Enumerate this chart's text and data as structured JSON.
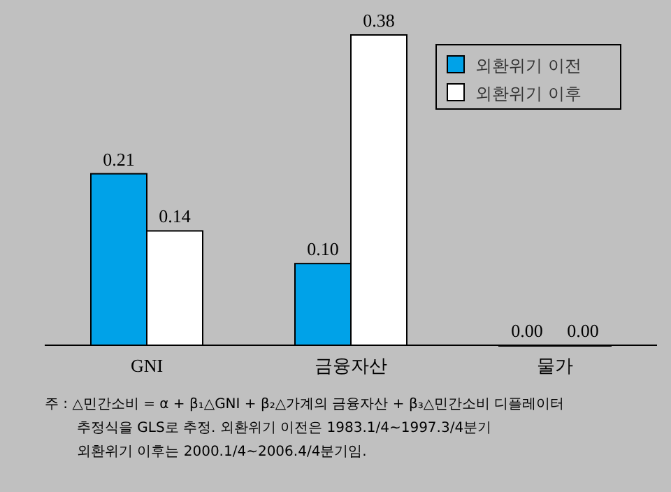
{
  "chart_data": {
    "type": "bar",
    "categories": [
      "GNI",
      "금융자산",
      "물가"
    ],
    "series": [
      {
        "name": "외환위기 이전",
        "color": "#00a2e8",
        "values": [
          0.21,
          0.1,
          0.0
        ],
        "value_labels": [
          "0.21",
          "0.10",
          "0.00"
        ]
      },
      {
        "name": "외환위기 이후",
        "color": "#ffffff",
        "values": [
          0.14,
          0.38,
          0.0
        ],
        "value_labels": [
          "0.14",
          "0.38",
          "0.00"
        ]
      }
    ],
    "legend": "top right",
    "annotations": [
      "주 : △민간소비 = α + β₁△GNI + β₂△가계의 금융자산 + β₃△민간소비 디플레이터",
      "추정식을 GLS로 추정. 외환위기 이전은 1983.1/4~1997.3/4분기",
      "외환위기 이후는 2000.1/4~2006.4/4분기임."
    ]
  }
}
